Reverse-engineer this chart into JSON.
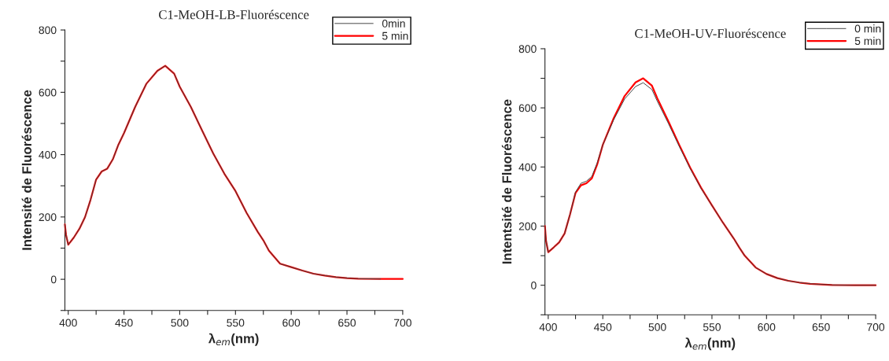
{
  "chart_data": [
    {
      "type": "line",
      "title": "C1-MeOH-LB-Fluoréscence",
      "xlabel": "λ$_{em}$(nm)",
      "ylabel": "Intensité de Fluoréscence",
      "xlim": [
        397,
        700
      ],
      "ylim": [
        -100,
        800
      ],
      "xticks": [
        400,
        {
          "value": 425,
          "label": null
        },
        450,
        {
          "value": 475,
          "label": null
        },
        500,
        {
          "value": 525,
          "label": null
        },
        550,
        {
          "value": 575,
          "label": null
        },
        600,
        {
          "value": 625,
          "label": null
        },
        650,
        {
          "value": 675,
          "label": null
        },
        700
      ],
      "yticks": [
        {
          "value": -100,
          "label": null
        },
        0,
        {
          "value": 100,
          "label": null
        },
        200,
        {
          "value": 300,
          "label": null
        },
        400,
        {
          "value": 500,
          "label": null
        },
        600,
        {
          "value": 700,
          "label": null
        },
        800
      ],
      "legend": "top right",
      "grid": false,
      "x": [
        397,
        398,
        400,
        405,
        410,
        415,
        420,
        425,
        430,
        435,
        440,
        445,
        450,
        460,
        470,
        480,
        487,
        495,
        500,
        510,
        520,
        530,
        540,
        550,
        560,
        570,
        575,
        580,
        590,
        600,
        610,
        620,
        630,
        640,
        650,
        660,
        680,
        700
      ],
      "series": [
        {
          "name": "0min",
          "color": "#404040",
          "values": [
            176,
            143,
            111,
            134,
            162,
            199,
            255,
            320,
            346,
            355,
            385,
            432,
            469,
            553,
            627,
            669,
            685,
            660,
            618,
            553,
            478,
            404,
            339,
            283,
            213,
            152,
            125,
            92,
            50,
            39,
            28,
            18,
            12,
            7,
            4,
            2,
            1,
            null
          ]
        },
        {
          "name": "5 min",
          "color": "#ff0000",
          "values": [
            176,
            143,
            111,
            134,
            162,
            199,
            255,
            320,
            346,
            355,
            385,
            432,
            469,
            553,
            627,
            669,
            685,
            660,
            618,
            553,
            478,
            404,
            339,
            283,
            213,
            152,
            125,
            92,
            50,
            39,
            28,
            18,
            12,
            7,
            4,
            2,
            1,
            1
          ]
        }
      ]
    },
    {
      "type": "line",
      "title": "C1-MeOH-UV-Fluoréscence",
      "xlabel": "λ$_{em}$(nm)",
      "ylabel": "Intentsité de Fluoréscence",
      "xlim": [
        397,
        700
      ],
      "ylim": [
        -100,
        800
      ],
      "xticks": [
        400,
        {
          "value": 425,
          "label": null
        },
        450,
        {
          "value": 475,
          "label": null
        },
        500,
        {
          "value": 525,
          "label": null
        },
        550,
        {
          "value": 575,
          "label": null
        },
        600,
        {
          "value": 625,
          "label": null
        },
        650,
        {
          "value": 675,
          "label": null
        },
        700
      ],
      "yticks": [
        {
          "value": -100,
          "label": null
        },
        0,
        {
          "value": 100,
          "label": null
        },
        200,
        {
          "value": 300,
          "label": null
        },
        400,
        {
          "value": 500,
          "label": null
        },
        600,
        {
          "value": 700,
          "label": null
        },
        800
      ],
      "legend": "top right",
      "grid": false,
      "x": [
        397,
        398,
        400,
        405,
        410,
        415,
        420,
        425,
        430,
        435,
        440,
        445,
        450,
        460,
        470,
        480,
        487,
        495,
        500,
        510,
        520,
        530,
        540,
        550,
        560,
        570,
        575,
        580,
        590,
        600,
        610,
        620,
        630,
        640,
        650,
        660,
        680,
        700
      ],
      "series": [
        {
          "name": "0 min",
          "color": "#404040",
          "values": [
            200,
            150,
            112,
            128,
            145,
            175,
            240,
            315,
            345,
            352,
            368,
            415,
            475,
            560,
            630,
            672,
            685,
            662,
            622,
            548,
            470,
            395,
            328,
            270,
            212,
            158,
            128,
            100,
            60,
            38,
            24,
            15,
            9,
            5,
            3,
            1,
            0,
            0
          ]
        },
        {
          "name": "5 min",
          "color": "#ff0000",
          "values": [
            200,
            150,
            112,
            128,
            145,
            175,
            240,
            312,
            338,
            345,
            362,
            410,
            475,
            565,
            640,
            686,
            700,
            675,
            632,
            555,
            475,
            398,
            330,
            270,
            212,
            158,
            128,
            100,
            60,
            38,
            24,
            15,
            9,
            5,
            3,
            1,
            0,
            0
          ]
        }
      ]
    }
  ]
}
